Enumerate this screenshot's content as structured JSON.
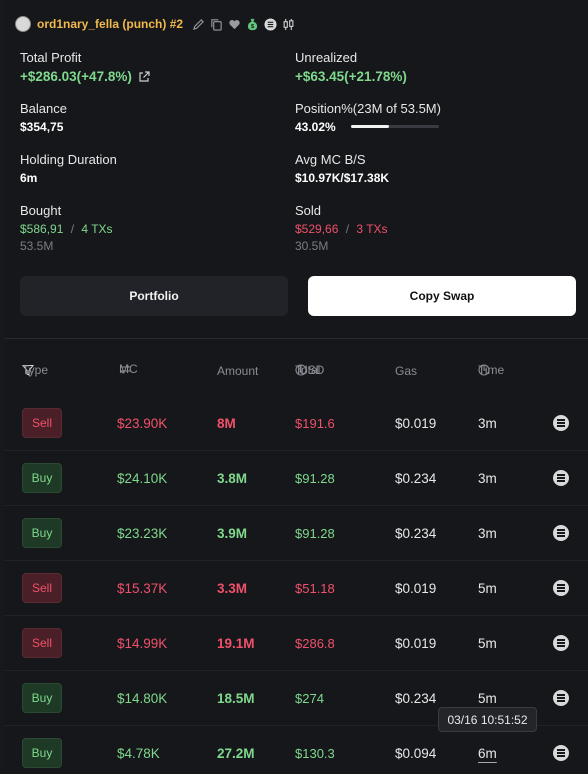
{
  "wallet": {
    "name": "ord1nary_fella (punch) #2",
    "icons": [
      "edit-icon",
      "copy-icon",
      "heart-icon",
      "money-bag-icon",
      "solana-icon",
      "candlestick-icon"
    ]
  },
  "stats": {
    "total_profit": {
      "label": "Total Profit",
      "value": "+$286.03(+47.8%)"
    },
    "unrealized": {
      "label": "Unrealized",
      "value": "+$63.45(+21.78%)"
    },
    "balance": {
      "label": "Balance",
      "value": "$354,75"
    },
    "position": {
      "label": "Position%(23M of 53.5M)",
      "value": "43.02%",
      "percent": 43.02
    },
    "holding_duration": {
      "label": "Holding Duration",
      "value": "6m"
    },
    "avg_mc": {
      "label": "Avg MC B/S",
      "value": "$10.97K/$17.38K"
    },
    "bought": {
      "label": "Bought",
      "usd": "$586,91",
      "sep": "/",
      "txs": "4 TXs",
      "amount": "53.5M"
    },
    "sold": {
      "label": "Sold",
      "usd": "$529,66",
      "sep": "/",
      "txs": "3 TXs",
      "amount": "30.5M"
    }
  },
  "buttons": {
    "portfolio": "Portfolio",
    "copy_swap": "Copy Swap"
  },
  "table": {
    "headers": {
      "type": "Type",
      "mc": "MC",
      "amount": "Amount",
      "total": "Total",
      "usd": "USD",
      "gas": "Gas",
      "time": "Time"
    },
    "rows": [
      {
        "type": "Sell",
        "mc": "$23.90K",
        "amount": "8M",
        "total": "$191.6",
        "gas": "$0.019",
        "time": "3m"
      },
      {
        "type": "Buy",
        "mc": "$24.10K",
        "amount": "3.8M",
        "total": "$91.28",
        "gas": "$0.234",
        "time": "3m"
      },
      {
        "type": "Buy",
        "mc": "$23.23K",
        "amount": "3.9M",
        "total": "$91.28",
        "gas": "$0.234",
        "time": "3m"
      },
      {
        "type": "Sell",
        "mc": "$15.37K",
        "amount": "3.3M",
        "total": "$51.18",
        "gas": "$0.019",
        "time": "5m"
      },
      {
        "type": "Sell",
        "mc": "$14.99K",
        "amount": "19.1M",
        "total": "$286.8",
        "gas": "$0.019",
        "time": "5m"
      },
      {
        "type": "Buy",
        "mc": "$14.80K",
        "amount": "18.5M",
        "total": "$274",
        "gas": "$0.234",
        "time": "5m"
      },
      {
        "type": "Buy",
        "mc": "$4.78K",
        "amount": "27.2M",
        "total": "$130.3",
        "gas": "$0.094",
        "time": "6m"
      }
    ]
  },
  "tooltip": {
    "text": "03/16 10:51:52"
  },
  "colors": {
    "buy": "#7fd88c",
    "sell": "#f0516a",
    "name": "#f0b94a",
    "background": "#16171b"
  }
}
